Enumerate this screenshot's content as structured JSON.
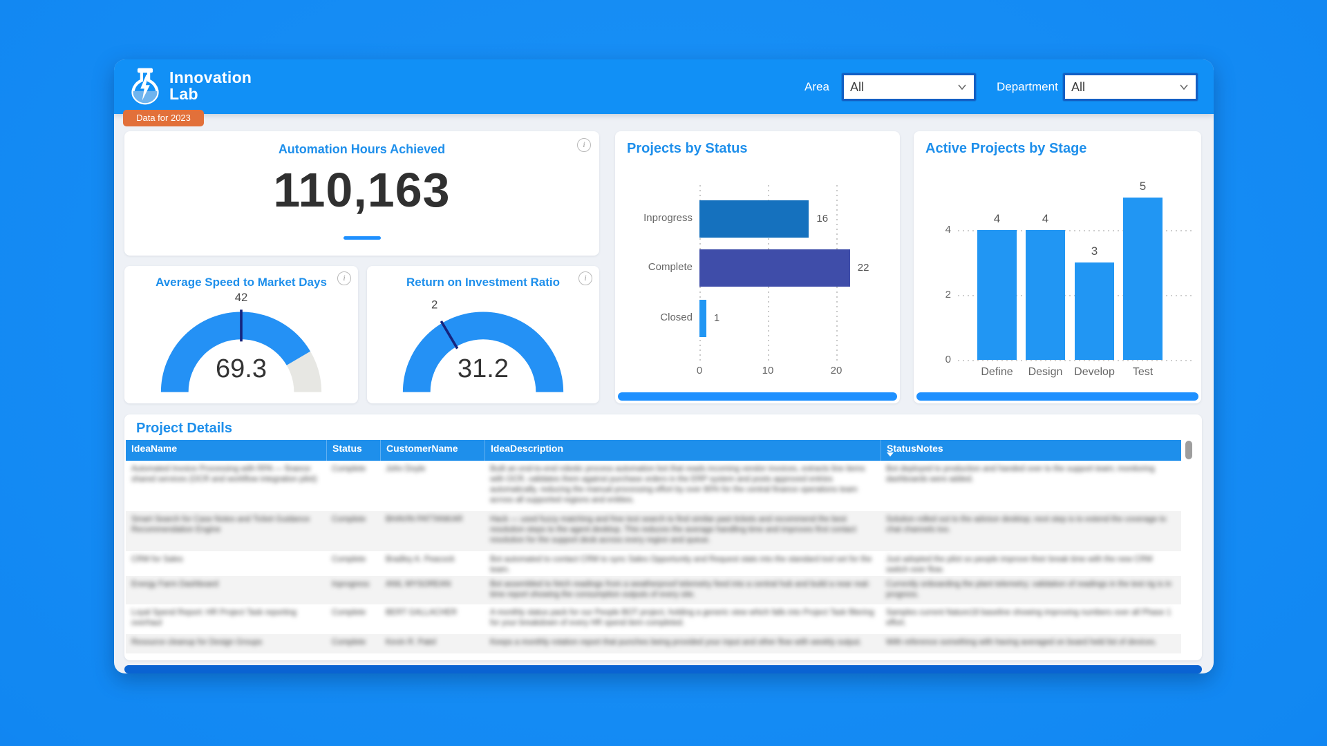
{
  "header": {
    "logo_line1": "Innovation",
    "logo_line2": "Lab",
    "badge": "Data for 2023",
    "filters": [
      {
        "label": "Area",
        "value": "All"
      },
      {
        "label": "Department",
        "value": "All"
      }
    ]
  },
  "info_icon_glyph": "i",
  "chart_data": [
    {
      "type": "kpi",
      "title": "Automation Hours Achieved",
      "value": 110163,
      "display": "110,163"
    },
    {
      "type": "gauge",
      "title": "Average Speed to Market Days",
      "value": 69.3,
      "display": "69.3",
      "target": 42,
      "fill_fraction": 0.83,
      "target_fraction": 0.5
    },
    {
      "type": "gauge",
      "title": "Return on Investment Ratio",
      "value": 31.2,
      "display": "31.2",
      "target": 2,
      "fill_fraction": 1.0,
      "target_fraction": 0.33
    },
    {
      "type": "bar",
      "orientation": "horizontal",
      "title": "Projects by Status",
      "categories": [
        "Inprogress",
        "Complete",
        "Closed"
      ],
      "values": [
        16,
        22,
        1
      ],
      "bar_colors": [
        "#1571BE",
        "#3F4DA9",
        "#2196F3"
      ],
      "x_ticks": [
        0,
        10,
        20
      ],
      "xlim": [
        0,
        28
      ],
      "grid": "dotted-vertical"
    },
    {
      "type": "bar",
      "orientation": "vertical",
      "title": "Active Projects by Stage",
      "categories": [
        "Define",
        "Design",
        "Develop",
        "Test"
      ],
      "values": [
        4,
        4,
        3,
        5
      ],
      "bar_color": "#2196F3",
      "y_ticks": [
        0,
        2,
        4
      ],
      "ylim": [
        0,
        5
      ],
      "grid": "dotted-horizontal"
    }
  ],
  "table": {
    "title": "Project Details",
    "columns": [
      {
        "label": "IdeaName",
        "sort": ""
      },
      {
        "label": "Status",
        "sort": ""
      },
      {
        "label": "CustomerName",
        "sort": ""
      },
      {
        "label": "IdeaDescription",
        "sort": ""
      },
      {
        "label": "StatusNotes",
        "sort": "desc"
      }
    ],
    "rows_blurred": true,
    "rows": [
      {
        "idea": "Automated Invoice Processing with RPA — finance shared services (OCR and workflow integration pilot)",
        "status": "Complete",
        "customer": "John Doyle",
        "desc": "Built an end-to-end robotic process automation bot that reads incoming vendor invoices, extracts line items with OCR, validates them against purchase orders in the ERP system and posts approved entries automatically, reducing the manual processing effort by over 80% for the central finance operations team across all supported regions and entities.",
        "notes": "Bot deployed to production and handed over to the support team; monitoring dashboards were added."
      },
      {
        "idea": "Smart Search for Case Notes and Ticket Guidance Recommendation Engine",
        "status": "Complete",
        "customer": "BHAVIN PATTANKAR",
        "desc": "Hack — used fuzzy matching and free text search to find similar past tickets and recommend the best resolution steps to the agent desktop. This reduces the average handling time and improves first contact resolution for the support desk across every region and queue.",
        "notes": "Solution rolled out to the advisor desktop; next step is to extend the coverage to chat channels too."
      },
      {
        "idea": "CRM for Sales",
        "status": "Complete",
        "customer": "Bradley A. Peacock",
        "desc": "Bot automated to contact CRM to sync Sales Opportunity and Request stats into the standard tool set for the team.",
        "notes": "Just adopted the pilot so people improve their break time with the new CRM switch over flow."
      },
      {
        "idea": "Energy Farm Dashboard",
        "status": "Inprogress",
        "customer": "ANIL MYSOREAN",
        "desc": "Bot assembled to fetch readings from a weatherproof telemetry feed into a central hub and build a near real-time report showing the consumption outputs of every site.",
        "notes": "Currently onboarding the plant telemetry; validation of readings in the test rig is in progress."
      },
      {
        "idea": "Loyal Spend Report: HR Project Task reporting overhaul",
        "status": "Complete",
        "customer": "BERT GALLACHER",
        "desc": "A monthly status pack for our People BOT project, holding a generic view which falls into Project Task filtering for your breakdown of every HR spend item completed.",
        "notes": "Samples current Nature18 baseline showing improving numbers over all Phase 1 effort."
      },
      {
        "idea": "Resource cleanup for Design Groups",
        "status": "Complete",
        "customer": "Kevin R. Patel",
        "desc": "Keeps a monthly rotation report that punches being provided your input and other flow with weekly output.",
        "notes": "With reference something with having averaged on board held list of devices."
      }
    ]
  },
  "colors": {
    "background": "#1187F2",
    "header_band": "#1190F6",
    "content_bg": "#EEF1F6",
    "card_bg": "#FFFFFF",
    "accent_blue": "#1E8FEB",
    "badge_orange": "#E2703A",
    "gauge_fill": "#2491F5",
    "gauge_rest": "#E7E7E3",
    "gauge_needle": "#15247E",
    "table_header": "#1E8FEB",
    "row_alt": "#F3F3F3",
    "chart_card_strip": "#1E90FF",
    "table_strip": "#0A63D2"
  }
}
